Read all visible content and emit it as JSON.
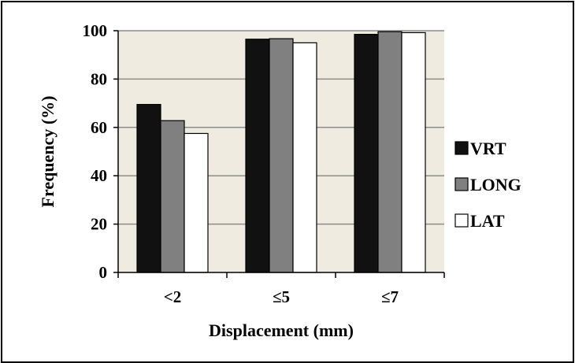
{
  "chart_data": {
    "type": "bar",
    "title": "",
    "xlabel": "Displacement (mm)",
    "ylabel": "Frequency (%)",
    "ylim": [
      0,
      100
    ],
    "yticks": [
      0,
      20,
      40,
      60,
      80,
      100
    ],
    "categories": [
      "<2",
      "≤5",
      "≤7"
    ],
    "series": [
      {
        "name": "VRT",
        "values": [
          69.5,
          96.5,
          98.5
        ]
      },
      {
        "name": "LONG",
        "values": [
          62.8,
          96.7,
          99.6
        ]
      },
      {
        "name": "LAT",
        "values": [
          57.5,
          95.0,
          99.2
        ]
      }
    ],
    "grid": true,
    "legend": "right",
    "colors": {
      "VRT": "#111111",
      "LONG": "#808080",
      "LAT": "#ffffff",
      "plot_background": "#efebe0",
      "gridline": "#8c8c8c"
    }
  }
}
